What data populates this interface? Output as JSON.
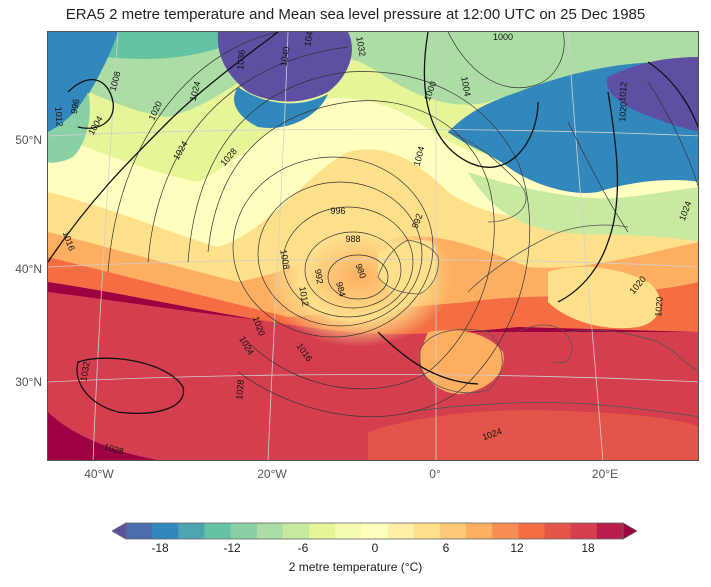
{
  "title": "ERA5 2 metre temperature and Mean sea level pressure at 12:00 UTC on 25 Dec 1985",
  "lat_labels": [
    "50°N",
    "40°N",
    "30°N"
  ],
  "lon_labels": [
    "40°W",
    "20°W",
    "0°",
    "20°E"
  ],
  "colorbar": {
    "label": "2 metre temperature (°C)",
    "ticks": [
      "-18",
      "-12",
      "-6",
      "0",
      "6",
      "12",
      "18"
    ],
    "colors": [
      "#5e4fa2",
      "#4a6db0",
      "#3288bd",
      "#4ea5b1",
      "#66c2a5",
      "#89d0a4",
      "#abdda4",
      "#c8e9a0",
      "#e6f598",
      "#f5fbb0",
      "#ffffbf",
      "#fff0a6",
      "#fee08b",
      "#fdc877",
      "#fdae61",
      "#f98e52",
      "#f46d43",
      "#e45549",
      "#d53e4f",
      "#b81d4c",
      "#9e0142"
    ]
  },
  "isobar_labels": [
    "1032",
    "1036",
    "1040",
    "1048",
    "1000",
    "1004",
    "1008",
    "1012",
    "1016",
    "1020",
    "1024",
    "1028",
    "996",
    "992",
    "988",
    "984",
    "980"
  ],
  "pressure_lows": [
    "988",
    "980",
    "984",
    "992"
  ]
}
